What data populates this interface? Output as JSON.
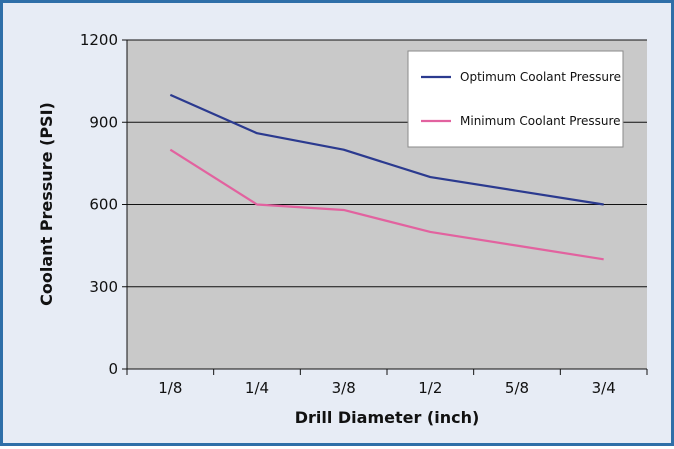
{
  "chart_data": {
    "type": "line",
    "title": "",
    "xlabel": "Drill Diameter (inch)",
    "ylabel": "Coolant Pressure (PSI)",
    "categories": [
      "1/8",
      "1/4",
      "3/8",
      "1/2",
      "5/8",
      "3/4"
    ],
    "ylim": [
      0,
      1200
    ],
    "yticks": [
      0,
      300,
      600,
      900,
      1200
    ],
    "grid": true,
    "legend_position": "top-right",
    "series": [
      {
        "name": "Optimum Coolant Pressure",
        "color": "#2b3a8f",
        "values": [
          1000,
          860,
          800,
          700,
          650,
          600
        ]
      },
      {
        "name": "Minimum Coolant Pressure",
        "color": "#e2629f",
        "values": [
          800,
          600,
          580,
          500,
          450,
          400
        ]
      }
    ]
  },
  "colors": {
    "frame_border": "#2f6fa8",
    "frame_background": "#e7ecf5",
    "plot_background": "#c9c9c9"
  }
}
